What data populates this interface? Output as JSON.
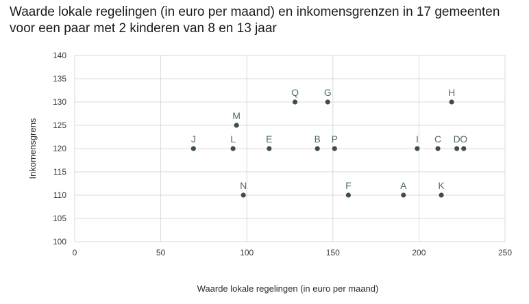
{
  "chart_data": {
    "type": "scatter",
    "title_line1": "Waarde lokale regelingen (in euro per maand) en inkomensgrenzen in 17 gemeenten",
    "title_line2": "voor een paar met 2 kinderen van 8 en 13 jaar",
    "xlabel": "Waarde lokale regelingen (in euro per maand)",
    "ylabel": "Inkomensgrens",
    "xlim": [
      0,
      250
    ],
    "ylim": [
      100,
      140
    ],
    "xticks": [
      0,
      50,
      100,
      150,
      200,
      250
    ],
    "yticks": [
      100,
      105,
      110,
      115,
      120,
      125,
      130,
      135,
      140
    ],
    "grid": true,
    "marker_color": "#3d4f4b",
    "label_color": "#4f6b68",
    "points": [
      {
        "label": "J",
        "x": 69,
        "y": 120
      },
      {
        "label": "L",
        "x": 92,
        "y": 120
      },
      {
        "label": "M",
        "x": 94,
        "y": 125
      },
      {
        "label": "N",
        "x": 98,
        "y": 110
      },
      {
        "label": "E",
        "x": 113,
        "y": 120
      },
      {
        "label": "Q",
        "x": 128,
        "y": 130
      },
      {
        "label": "B",
        "x": 141,
        "y": 120
      },
      {
        "label": "G",
        "x": 147,
        "y": 130
      },
      {
        "label": "P",
        "x": 151,
        "y": 120
      },
      {
        "label": "F",
        "x": 159,
        "y": 110
      },
      {
        "label": "A",
        "x": 191,
        "y": 110
      },
      {
        "label": "I",
        "x": 199,
        "y": 120
      },
      {
        "label": "C",
        "x": 211,
        "y": 120
      },
      {
        "label": "K",
        "x": 213,
        "y": 110
      },
      {
        "label": "H",
        "x": 219,
        "y": 130
      },
      {
        "label": "D",
        "x": 222,
        "y": 120
      },
      {
        "label": "O",
        "x": 226,
        "y": 120
      }
    ]
  }
}
